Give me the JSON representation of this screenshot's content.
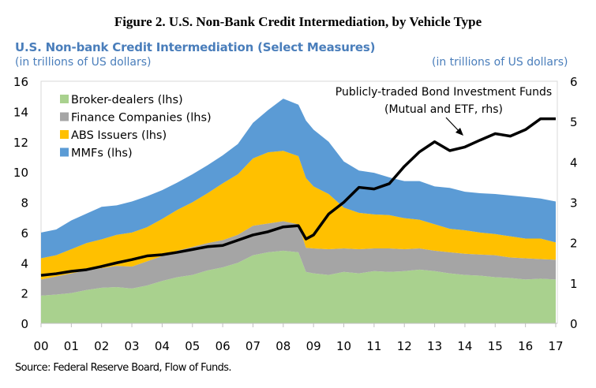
{
  "figure_title": "Figure 2. U.S. Non-Bank Credit Intermediation, by Vehicle Type",
  "source": "Source: Federal Reserve Board, Flow of Funds.",
  "chart_data": {
    "type": "area",
    "title": "U.S. Non-bank Credit Intermediation (Select Measures)",
    "ylabel": "(in trillions of US dollars)",
    "y2label": "(in trillions of US dollars)",
    "ylim": [
      0,
      16
    ],
    "y2lim": [
      0,
      6
    ],
    "yticks": [
      "0",
      "2",
      "4",
      "6",
      "8",
      "10",
      "12",
      "14",
      "16"
    ],
    "y2ticks": [
      "0",
      "1",
      "2",
      "3",
      "4",
      "5",
      "6"
    ],
    "xticks": [
      "00",
      "01",
      "02",
      "03",
      "04",
      "05",
      "06",
      "07",
      "08",
      "09",
      "10",
      "11",
      "12",
      "13",
      "14",
      "15",
      "16",
      "17"
    ],
    "grid": false,
    "legend": "top-left",
    "stacked": true,
    "x": [
      2000,
      2000.5,
      2001,
      2001.5,
      2002,
      2002.5,
      2003,
      2003.5,
      2004,
      2004.5,
      2005,
      2005.5,
      2006,
      2006.5,
      2007,
      2007.5,
      2008,
      2008.5,
      2008.75,
      2009,
      2009.5,
      2010,
      2010.5,
      2011,
      2011.5,
      2012,
      2012.5,
      2013,
      2013.5,
      2014,
      2014.5,
      2015,
      2015.5,
      2016,
      2016.5,
      2017
    ],
    "series": [
      {
        "name": "Broker-dealers (lhs)",
        "color": "#a9d18e",
        "axis": "left",
        "values": [
          1.83,
          1.9,
          2.0,
          2.2,
          2.35,
          2.4,
          2.3,
          2.5,
          2.8,
          3.05,
          3.2,
          3.5,
          3.7,
          4.0,
          4.5,
          4.7,
          4.8,
          4.7,
          3.4,
          3.3,
          3.2,
          3.4,
          3.3,
          3.45,
          3.4,
          3.45,
          3.55,
          3.45,
          3.3,
          3.2,
          3.15,
          3.05,
          3.0,
          2.9,
          2.95,
          2.9
        ]
      },
      {
        "name": "Finance Companies (lhs)",
        "color": "#a5a5a5",
        "axis": "left",
        "values": [
          1.07,
          1.2,
          1.3,
          1.3,
          1.3,
          1.4,
          1.45,
          1.6,
          1.65,
          1.75,
          1.85,
          1.8,
          1.8,
          1.85,
          1.95,
          1.9,
          1.95,
          1.85,
          1.6,
          1.65,
          1.7,
          1.55,
          1.6,
          1.5,
          1.55,
          1.45,
          1.4,
          1.35,
          1.4,
          1.4,
          1.4,
          1.45,
          1.35,
          1.4,
          1.3,
          1.3
        ]
      },
      {
        "name": "ABS Issuers (lhs)",
        "color": "#ffc000",
        "axis": "left",
        "values": [
          1.4,
          1.4,
          1.6,
          1.8,
          1.9,
          2.05,
          2.25,
          2.25,
          2.45,
          2.7,
          2.95,
          3.3,
          3.75,
          4.0,
          4.45,
          4.7,
          4.65,
          4.5,
          4.6,
          4.1,
          3.65,
          2.7,
          2.4,
          2.25,
          2.2,
          2.05,
          1.9,
          1.75,
          1.55,
          1.55,
          1.45,
          1.4,
          1.4,
          1.3,
          1.35,
          1.15
        ]
      },
      {
        "name": "MMFs (lhs)",
        "color": "#5b9bd5",
        "axis": "left",
        "values": [
          1.7,
          1.7,
          1.9,
          1.95,
          2.15,
          1.95,
          2.05,
          2.05,
          1.9,
          1.8,
          1.85,
          1.85,
          1.85,
          2.0,
          2.35,
          2.8,
          3.45,
          3.4,
          3.8,
          3.75,
          3.45,
          3.05,
          2.8,
          2.75,
          2.5,
          2.45,
          2.55,
          2.5,
          2.7,
          2.55,
          2.6,
          2.65,
          2.7,
          2.75,
          2.65,
          2.7
        ]
      }
    ],
    "line_series": {
      "color": "#000000",
      "axis": "right",
      "values": [
        1.19,
        1.23,
        1.29,
        1.33,
        1.41,
        1.5,
        1.58,
        1.67,
        1.7,
        1.76,
        1.83,
        1.9,
        1.93,
        2.06,
        2.19,
        2.27,
        2.39,
        2.42,
        2.09,
        2.19,
        2.71,
        3.0,
        3.37,
        3.33,
        3.46,
        3.89,
        4.25,
        4.5,
        4.28,
        4.37,
        4.54,
        4.7,
        4.64,
        4.8,
        5.07,
        5.07
      ]
    },
    "annotation": [
      "Publicly-traded Bond Investment Funds",
      "(Mutual and ETF, rhs)"
    ]
  }
}
